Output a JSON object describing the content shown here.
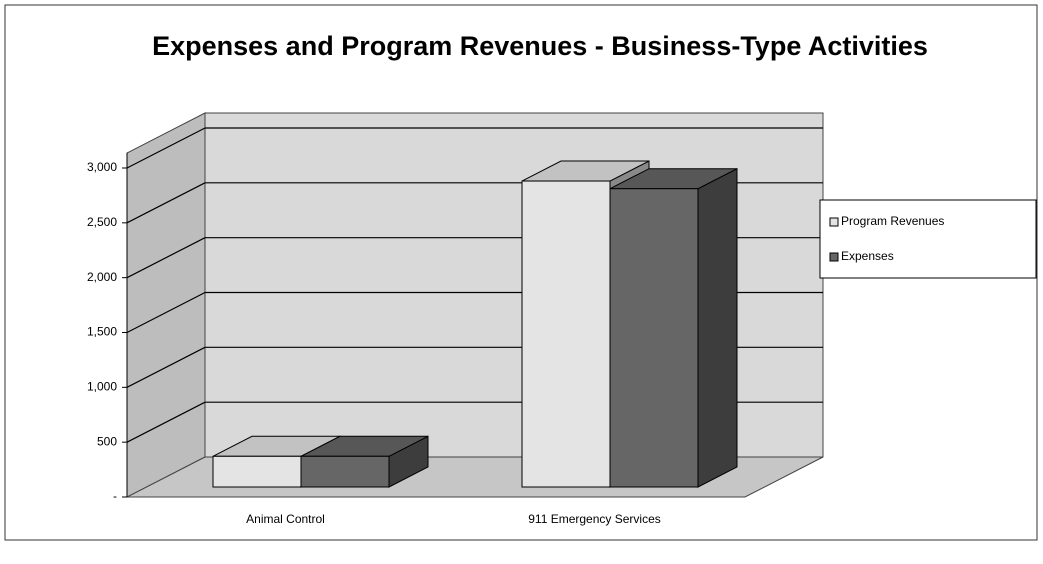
{
  "chart_data": {
    "type": "bar3d",
    "title": "Expenses and Program Revenues - Business-Type Activities",
    "categories": [
      "Animal Control",
      "911 Emergency Services"
    ],
    "series": [
      {
        "name": "Program Revenues",
        "color": "#e4e4e4",
        "values": [
          280,
          2790
        ]
      },
      {
        "name": "Expenses",
        "color": "#666666",
        "values": [
          280,
          2720
        ]
      }
    ],
    "ylim": [
      0,
      3000
    ],
    "yticks": [
      {
        "value": 0,
        "label": "-"
      },
      500,
      {
        "value": 1000,
        "label": "1,000"
      },
      {
        "value": 1500,
        "label": "1,500"
      },
      {
        "value": 2000,
        "label": "2,000"
      },
      {
        "value": 2500,
        "label": "2,500"
      },
      {
        "value": 3000,
        "label": "3,000"
      }
    ],
    "grid": true,
    "legend": "right"
  }
}
